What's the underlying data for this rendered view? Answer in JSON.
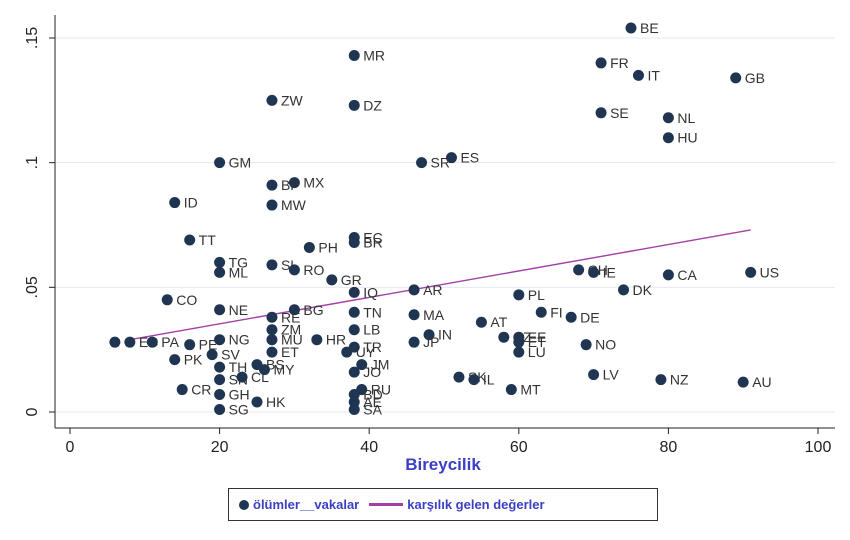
{
  "chart_data": {
    "type": "scatter",
    "xlabel": "Bireycilik",
    "ylabel": "",
    "xlim": [
      0,
      100
    ],
    "ylim": [
      0,
      0.155
    ],
    "x_ticks": [
      0,
      20,
      40,
      60,
      80,
      100
    ],
    "y_ticks": [
      0,
      0.05,
      0.1,
      0.15
    ],
    "y_tick_labels": [
      "0",
      ".05",
      ".1",
      ".15"
    ],
    "grid": true,
    "legend_position": "bottom",
    "series": [
      {
        "name": "ölümler__vakalar",
        "color": "#1f3552",
        "points": [
          {
            "label": "BE",
            "x": 75,
            "y": 0.154
          },
          {
            "label": "MR",
            "x": 38,
            "y": 0.143
          },
          {
            "label": "FR",
            "x": 71,
            "y": 0.14
          },
          {
            "label": "IT",
            "x": 76,
            "y": 0.135
          },
          {
            "label": "GB",
            "x": 89,
            "y": 0.134
          },
          {
            "label": "ZW",
            "x": 27,
            "y": 0.125
          },
          {
            "label": "DZ",
            "x": 38,
            "y": 0.123
          },
          {
            "label": "SE",
            "x": 71,
            "y": 0.12
          },
          {
            "label": "NL",
            "x": 80,
            "y": 0.118
          },
          {
            "label": "HU",
            "x": 80,
            "y": 0.11
          },
          {
            "label": "ES",
            "x": 51,
            "y": 0.102
          },
          {
            "label": "SR",
            "x": 47,
            "y": 0.1
          },
          {
            "label": "GM",
            "x": 20,
            "y": 0.1
          },
          {
            "label": "MX",
            "x": 30,
            "y": 0.092
          },
          {
            "label": "BF",
            "x": 27,
            "y": 0.091
          },
          {
            "label": "ID",
            "x": 14,
            "y": 0.084
          },
          {
            "label": "MW",
            "x": 27,
            "y": 0.083
          },
          {
            "label": "EC",
            "x": 38,
            "y": 0.07
          },
          {
            "label": "TT",
            "x": 16,
            "y": 0.069
          },
          {
            "label": "BR",
            "x": 38,
            "y": 0.068
          },
          {
            "label": "PH",
            "x": 32,
            "y": 0.066
          },
          {
            "label": "TG",
            "x": 20,
            "y": 0.06
          },
          {
            "label": "SL",
            "x": 27,
            "y": 0.059
          },
          {
            "label": "CH",
            "x": 68,
            "y": 0.057
          },
          {
            "label": "IE",
            "x": 70,
            "y": 0.056
          },
          {
            "label": "ML",
            "x": 20,
            "y": 0.056
          },
          {
            "label": "RO",
            "x": 30,
            "y": 0.057
          },
          {
            "label": "CA",
            "x": 80,
            "y": 0.055
          },
          {
            "label": "US",
            "x": 91,
            "y": 0.056
          },
          {
            "label": "GR",
            "x": 35,
            "y": 0.053
          },
          {
            "label": "DK",
            "x": 74,
            "y": 0.049
          },
          {
            "label": "AR",
            "x": 46,
            "y": 0.049
          },
          {
            "label": "IQ",
            "x": 38,
            "y": 0.048
          },
          {
            "label": "PL",
            "x": 60,
            "y": 0.047
          },
          {
            "label": "CO",
            "x": 13,
            "y": 0.045
          },
          {
            "label": "NE",
            "x": 20,
            "y": 0.041
          },
          {
            "label": "BG",
            "x": 30,
            "y": 0.041
          },
          {
            "label": "FI",
            "x": 63,
            "y": 0.04
          },
          {
            "label": "TN",
            "x": 38,
            "y": 0.04
          },
          {
            "label": "MA",
            "x": 46,
            "y": 0.039
          },
          {
            "label": "DE",
            "x": 67,
            "y": 0.038
          },
          {
            "label": "RE",
            "x": 27,
            "y": 0.038
          },
          {
            "label": "AT",
            "x": 55,
            "y": 0.036
          },
          {
            "label": "ZM",
            "x": 27,
            "y": 0.033
          },
          {
            "label": "LB",
            "x": 38,
            "y": 0.033
          },
          {
            "label": "IN",
            "x": 48,
            "y": 0.031
          },
          {
            "label": "EE",
            "x": 60,
            "y": 0.03
          },
          {
            "label": "CZ",
            "x": 58,
            "y": 0.03
          },
          {
            "label": "NG",
            "x": 20,
            "y": 0.029
          },
          {
            "label": "MU",
            "x": 27,
            "y": 0.029
          },
          {
            "label": "HR",
            "x": 33,
            "y": 0.029
          },
          {
            "label": "ET",
            "x": 60,
            "y": 0.028
          },
          {
            "label": "JP",
            "x": 46,
            "y": 0.028
          },
          {
            "label": "EC2",
            "x": 8,
            "y": 0.028
          },
          {
            "label": "PA",
            "x": 11,
            "y": 0.028
          },
          {
            "label": "PE",
            "x": 16,
            "y": 0.027
          },
          {
            "label": "NO",
            "x": 69,
            "y": 0.027
          },
          {
            "label": "TR",
            "x": 38,
            "y": 0.026
          },
          {
            "label": "UY",
            "x": 37,
            "y": 0.024
          },
          {
            "label": "LU",
            "x": 60,
            "y": 0.024
          },
          {
            "label": "ET2",
            "x": 27,
            "y": 0.024
          },
          {
            "label": "SV",
            "x": 19,
            "y": 0.023
          },
          {
            "label": "PK",
            "x": 14,
            "y": 0.021
          },
          {
            "label": "BS",
            "x": 25,
            "y": 0.019
          },
          {
            "label": "JM",
            "x": 39,
            "y": 0.019
          },
          {
            "label": "TH",
            "x": 20,
            "y": 0.018
          },
          {
            "label": "MY",
            "x": 26,
            "y": 0.017
          },
          {
            "label": "JO",
            "x": 38,
            "y": 0.016
          },
          {
            "label": "LV",
            "x": 70,
            "y": 0.015
          },
          {
            "label": "SK",
            "x": 52,
            "y": 0.014
          },
          {
            "label": "IL",
            "x": 54,
            "y": 0.013
          },
          {
            "label": "SN",
            "x": 20,
            "y": 0.013
          },
          {
            "label": "NZ",
            "x": 79,
            "y": 0.013
          },
          {
            "label": "AU",
            "x": 90,
            "y": 0.012
          },
          {
            "label": "CL",
            "x": 23,
            "y": 0.014
          },
          {
            "label": "RU",
            "x": 39,
            "y": 0.009
          },
          {
            "label": "MT",
            "x": 59,
            "y": 0.009
          },
          {
            "label": "CR",
            "x": 15,
            "y": 0.009
          },
          {
            "label": "GH",
            "x": 20,
            "y": 0.007
          },
          {
            "label": "BD",
            "x": 38,
            "y": 0.007
          },
          {
            "label": "AE",
            "x": 38,
            "y": 0.004
          },
          {
            "label": "HK",
            "x": 25,
            "y": 0.004
          },
          {
            "label": "SG",
            "x": 20,
            "y": 0.001
          },
          {
            "label": "SA",
            "x": 38,
            "y": 0.001
          },
          {
            "label": "KP",
            "x": 6,
            "y": 0.028
          }
        ]
      },
      {
        "name": "karşılık gelen değerler",
        "type": "line",
        "color": "#a43fa8",
        "x": [
          8,
          91
        ],
        "y": [
          0.029,
          0.073
        ]
      }
    ]
  },
  "point_display_labels": {
    "EC2": "EC",
    "ET2": "ET",
    "KP": ""
  }
}
